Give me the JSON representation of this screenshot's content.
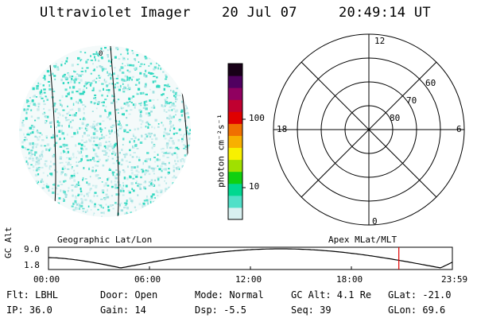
{
  "header": {
    "title": "Ultraviolet Imager",
    "date": "20 Jul 07",
    "time": "20:49:14 UT"
  },
  "colorbar": {
    "unit_label": "photon cm⁻²s⁻¹",
    "ticks": [
      "100",
      "10"
    ],
    "colors": [
      "#d8f0f0",
      "#50e0c8",
      "#00d890",
      "#10d010",
      "#a0e000",
      "#f8f000",
      "#f8b000",
      "#f07000",
      "#e00000",
      "#c00030",
      "#900060",
      "#500060",
      "#180018"
    ]
  },
  "polar": {
    "mlt_labels": {
      "top": "12",
      "left": "18",
      "right": "6",
      "bottom": "0"
    },
    "lat_labels": [
      "60",
      "70",
      "80"
    ]
  },
  "labels": {
    "left_panel": "Geographic Lat/Lon",
    "right_panel": "Apex MLat/MLT"
  },
  "altitude_strip": {
    "axis_label": "GC Alt",
    "y_max": "9.0",
    "y_min": "1.8",
    "x_ticks": [
      "00:00",
      "06:00",
      "12:00",
      "18:00",
      "23:59"
    ],
    "marker_color": "#e00000",
    "marker_time_hours": 20.82
  },
  "info": {
    "filter": "Flt: LBHL",
    "ip": "IP: 36.0",
    "door": "Door: Open",
    "gain": "Gain: 14",
    "mode": "Mode: Normal",
    "dsp": "Dsp:    -5.5",
    "gc_alt": "GC Alt: 4.1 Re",
    "seq": "Seq: 39",
    "glat": "GLat: -21.0",
    "glon": "GLon:  69.6"
  }
}
